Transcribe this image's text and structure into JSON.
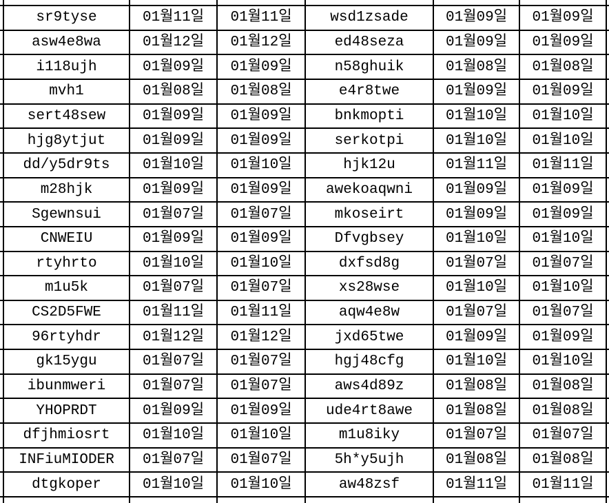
{
  "table": {
    "rows": [
      [
        "sr9tyse",
        "01월11일",
        "01월11일",
        "wsd1zsade",
        "01월09일",
        "01월09일"
      ],
      [
        "asw4e8wa",
        "01월12일",
        "01월12일",
        "ed48seza",
        "01월09일",
        "01월09일"
      ],
      [
        "i118ujh",
        "01월09일",
        "01월09일",
        "n58ghuik",
        "01월08일",
        "01월08일"
      ],
      [
        "mvh1",
        "01월08일",
        "01월08일",
        "e4r8twe",
        "01월09일",
        "01월09일"
      ],
      [
        "sert48sew",
        "01월09일",
        "01월09일",
        "bnkmopti",
        "01월10일",
        "01월10일"
      ],
      [
        "hjg8ytjut",
        "01월09일",
        "01월09일",
        "serkotpi",
        "01월10일",
        "01월10일"
      ],
      [
        "dd/y5dr9ts",
        "01월10일",
        "01월10일",
        "hjk12u",
        "01월11일",
        "01월11일"
      ],
      [
        "m28hjk",
        "01월09일",
        "01월09일",
        "awekoaqwni",
        "01월09일",
        "01월09일"
      ],
      [
        "Sgewnsui",
        "01월07일",
        "01월07일",
        "mkoseirt",
        "01월09일",
        "01월09일"
      ],
      [
        "CNWEIU",
        "01월09일",
        "01월09일",
        "Dfvgbsey",
        "01월10일",
        "01월10일"
      ],
      [
        "rtyhrto",
        "01월10일",
        "01월10일",
        "dxfsd8g",
        "01월07일",
        "01월07일"
      ],
      [
        "m1u5k",
        "01월07일",
        "01월07일",
        "xs28wse",
        "01월10일",
        "01월10일"
      ],
      [
        "CS2D5FWE",
        "01월11일",
        "01월11일",
        "aqw4e8w",
        "01월07일",
        "01월07일"
      ],
      [
        "96rtyhdr",
        "01월12일",
        "01월12일",
        "jxd65twe",
        "01월09일",
        "01월09일"
      ],
      [
        "gk15ygu",
        "01월07일",
        "01월07일",
        "hgj48cfg",
        "01월10일",
        "01월10일"
      ],
      [
        "ibunmweri",
        "01월07일",
        "01월07일",
        "aws4d89z",
        "01월08일",
        "01월08일"
      ],
      [
        "YHOPRDT",
        "01월09일",
        "01월09일",
        "ude4rt8awe",
        "01월08일",
        "01월08일"
      ],
      [
        "dfjhmiosrt",
        "01월10일",
        "01월10일",
        "m1u8iky",
        "01월07일",
        "01월07일"
      ],
      [
        "INFiuMIODER",
        "01월07일",
        "01월07일",
        "5h*y5ujh",
        "01월08일",
        "01월08일"
      ],
      [
        "dtgkoper",
        "01월10일",
        "01월10일",
        "aw48zsf",
        "01월11일",
        "01월11일"
      ]
    ]
  },
  "colors": {
    "grid_line": "#000000",
    "cell_background": "#ffffff",
    "text": "#000000"
  }
}
